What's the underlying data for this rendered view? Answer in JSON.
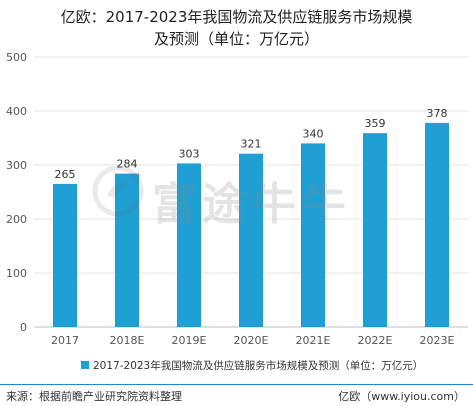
{
  "title_line1": "亿欧：2017-2023年我国物流及供应链服务市场规模",
  "title_line2": "及预测（单位：万亿元）",
  "chart_data": {
    "type": "bar",
    "categories": [
      "2017",
      "2018E",
      "2019E",
      "2020E",
      "2021E",
      "2022E",
      "2023E"
    ],
    "series": [
      {
        "name": "2017-2023年我国物流及供应链服务市场规模及预测（单位：万亿元）",
        "values": [
          265,
          284,
          303,
          321,
          340,
          359,
          378
        ],
        "color": "#1f9fd4"
      }
    ],
    "ylim": [
      0,
      500
    ],
    "yticks": [
      0,
      100,
      200,
      300,
      400,
      500
    ],
    "grid": true,
    "legend": "bottom",
    "data_labels": true
  },
  "watermark_text": "富途牛牛",
  "watermark_icon": "futu-logo-icon",
  "footer": {
    "source": "来源：根据前瞻产业研究院资料整理",
    "brand": "亿欧（www.iyiou.com）"
  }
}
